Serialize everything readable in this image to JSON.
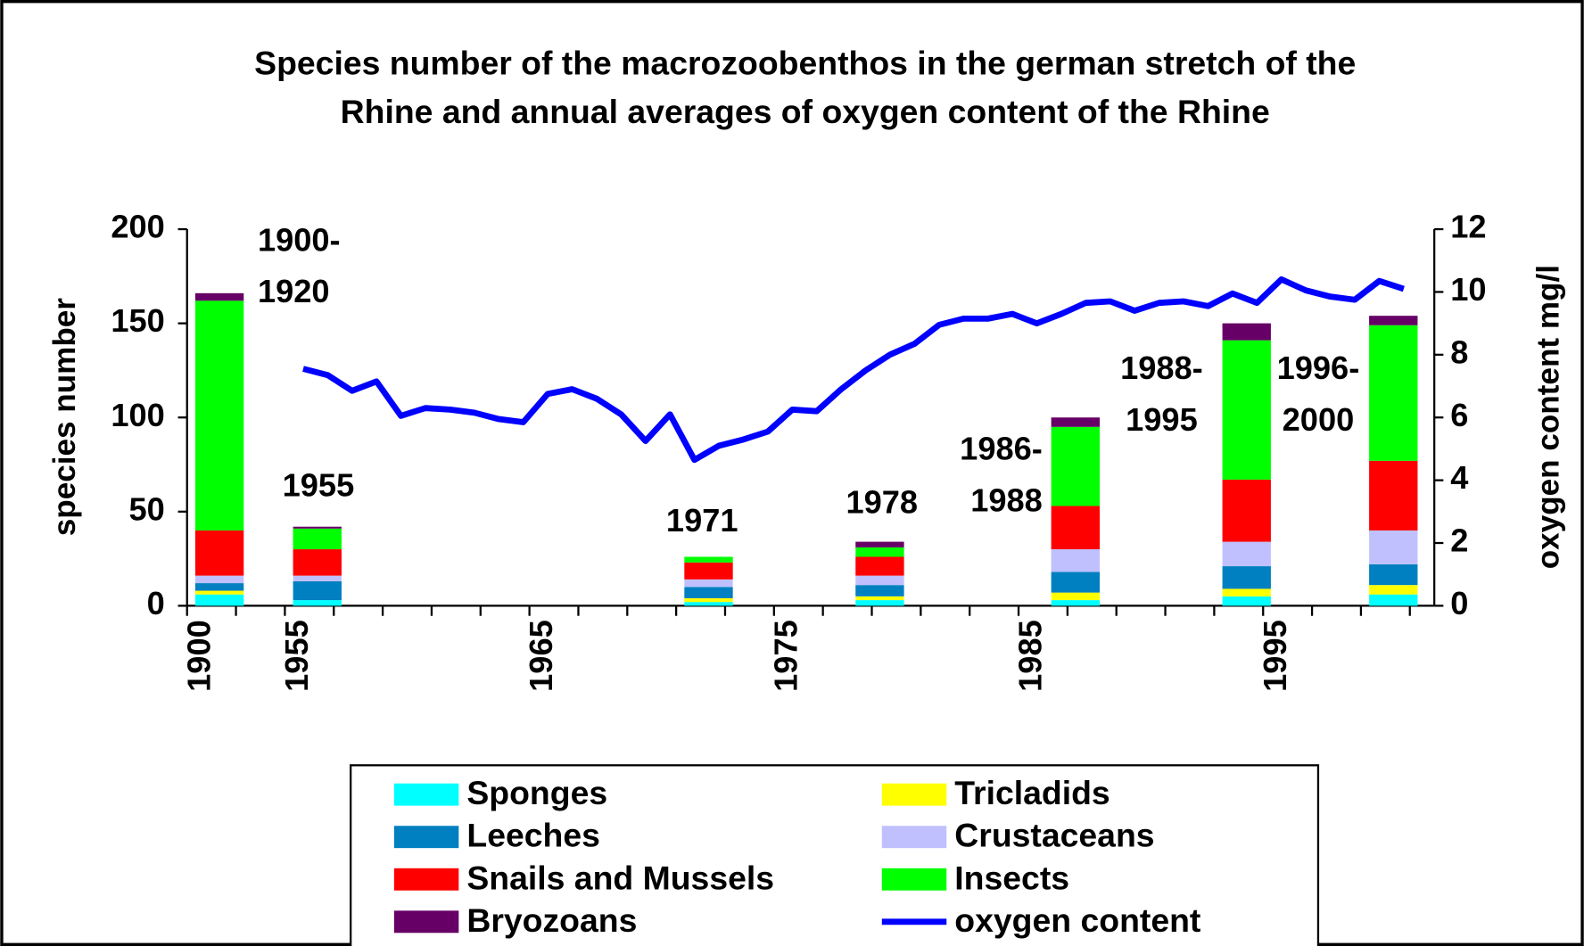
{
  "chart_data": {
    "type": "bar",
    "title_lines": [
      "Species number of the macrozoobenthos in the german stretch of the",
      "Rhine and annual averages of oxygen content of the Rhine"
    ],
    "y_label": "species number",
    "y2_label": "oxygen content mg/l",
    "categories": [
      "1900",
      null,
      null,
      null,
      "1955",
      null,
      null,
      null,
      null,
      null,
      null,
      null,
      null,
      null,
      "1965",
      null,
      null,
      null,
      null,
      null,
      null,
      null,
      null,
      null,
      "1975",
      null,
      null,
      null,
      null,
      null,
      null,
      null,
      null,
      null,
      "1985",
      null,
      null,
      null,
      null,
      null,
      null,
      null,
      null,
      null,
      "1995",
      null,
      null,
      null,
      null,
      null,
      null
    ],
    "series": [
      {
        "name": "Sponges",
        "color": "#00ffff",
        "values": [
          6,
          null,
          null,
          null,
          3,
          null,
          null,
          null,
          null,
          null,
          null,
          null,
          null,
          null,
          null,
          null,
          null,
          null,
          null,
          null,
          2,
          null,
          null,
          null,
          null,
          null,
          null,
          3,
          null,
          null,
          null,
          null,
          null,
          null,
          null,
          3,
          null,
          null,
          null,
          null,
          null,
          null,
          5,
          null,
          null,
          null,
          null,
          null,
          6,
          null,
          null
        ]
      },
      {
        "name": "Tricladids",
        "color": "#ffff00",
        "values": [
          2,
          null,
          null,
          null,
          0,
          null,
          null,
          null,
          null,
          null,
          null,
          null,
          null,
          null,
          null,
          null,
          null,
          null,
          null,
          null,
          2,
          null,
          null,
          null,
          null,
          null,
          null,
          2,
          null,
          null,
          null,
          null,
          null,
          null,
          null,
          4,
          null,
          null,
          null,
          null,
          null,
          null,
          4,
          null,
          null,
          null,
          null,
          null,
          5,
          null,
          null
        ]
      },
      {
        "name": "Leeches",
        "color": "#0080c0",
        "values": [
          4,
          null,
          null,
          null,
          10,
          null,
          null,
          null,
          null,
          null,
          null,
          null,
          null,
          null,
          null,
          null,
          null,
          null,
          null,
          null,
          6,
          null,
          null,
          null,
          null,
          null,
          null,
          6,
          null,
          null,
          null,
          null,
          null,
          null,
          null,
          11,
          null,
          null,
          null,
          null,
          null,
          null,
          12,
          null,
          null,
          null,
          null,
          null,
          11,
          null,
          null
        ]
      },
      {
        "name": "Crustaceans",
        "color": "#c0c0ff",
        "values": [
          4,
          null,
          null,
          null,
          3,
          null,
          null,
          null,
          null,
          null,
          null,
          null,
          null,
          null,
          null,
          null,
          null,
          null,
          null,
          null,
          4,
          null,
          null,
          null,
          null,
          null,
          null,
          5,
          null,
          null,
          null,
          null,
          null,
          null,
          null,
          12,
          null,
          null,
          null,
          null,
          null,
          null,
          13,
          null,
          null,
          null,
          null,
          null,
          18,
          null,
          null
        ]
      },
      {
        "name": "Snails and Mussels",
        "color": "#ff0000",
        "values": [
          24,
          null,
          null,
          null,
          14,
          null,
          null,
          null,
          null,
          null,
          null,
          null,
          null,
          null,
          null,
          null,
          null,
          null,
          null,
          null,
          9,
          null,
          null,
          null,
          null,
          null,
          null,
          10,
          null,
          null,
          null,
          null,
          null,
          null,
          null,
          23,
          null,
          null,
          null,
          null,
          null,
          null,
          33,
          null,
          null,
          null,
          null,
          null,
          37,
          null,
          null
        ]
      },
      {
        "name": "Insects",
        "color": "#00ff00",
        "values": [
          122,
          null,
          null,
          null,
          11,
          null,
          null,
          null,
          null,
          null,
          null,
          null,
          null,
          null,
          null,
          null,
          null,
          null,
          null,
          null,
          3,
          null,
          null,
          null,
          null,
          null,
          null,
          5,
          null,
          null,
          null,
          null,
          null,
          null,
          null,
          42,
          null,
          null,
          null,
          null,
          null,
          null,
          74,
          null,
          null,
          null,
          null,
          null,
          72,
          null,
          null
        ]
      },
      {
        "name": "Bryozoans",
        "color": "#660066",
        "values": [
          4,
          null,
          null,
          null,
          1,
          null,
          null,
          null,
          null,
          null,
          null,
          null,
          null,
          null,
          null,
          null,
          null,
          null,
          null,
          null,
          0,
          null,
          null,
          null,
          null,
          null,
          null,
          3,
          null,
          null,
          null,
          null,
          null,
          null,
          null,
          5,
          null,
          null,
          null,
          null,
          null,
          null,
          9,
          null,
          null,
          null,
          null,
          null,
          5,
          null,
          null
        ]
      },
      {
        "name": "oxygen content",
        "color": "#0000ff",
        "type": "line",
        "axis": "y2",
        "values": [
          null,
          null,
          null,
          null,
          7.55,
          7.35,
          6.85,
          7.15,
          6.05,
          6.3,
          6.25,
          6.15,
          5.95,
          5.85,
          6.75,
          6.9,
          6.6,
          6.1,
          5.25,
          6.1,
          4.65,
          5.1,
          5.3,
          5.55,
          6.25,
          6.2,
          6.9,
          7.5,
          8.0,
          8.35,
          8.95,
          9.15,
          9.15,
          9.3,
          9.0,
          9.3,
          9.65,
          9.7,
          9.4,
          9.65,
          9.7,
          9.55,
          9.95,
          9.65,
          10.4,
          10.05,
          9.85,
          9.75,
          10.35,
          10.1,
          null
        ]
      }
    ],
    "annotations": [
      {
        "lines": [
          "1900-",
          "1920"
        ]
      },
      {
        "lines": [
          "1955"
        ]
      },
      {
        "lines": [
          "1971"
        ]
      },
      {
        "lines": [
          "1978"
        ]
      },
      {
        "lines": [
          "1986-",
          "1988"
        ]
      },
      {
        "lines": [
          "1988-",
          "1995"
        ]
      },
      {
        "lines": [
          "1996-",
          "2000"
        ]
      }
    ],
    "ylim": [
      0,
      200
    ],
    "yticks": [
      0,
      50,
      100,
      150,
      200
    ],
    "y2lim": [
      0,
      12
    ],
    "y2ticks": [
      0,
      2,
      4,
      6,
      8,
      10,
      12
    ],
    "stacked": true,
    "grid": false
  }
}
